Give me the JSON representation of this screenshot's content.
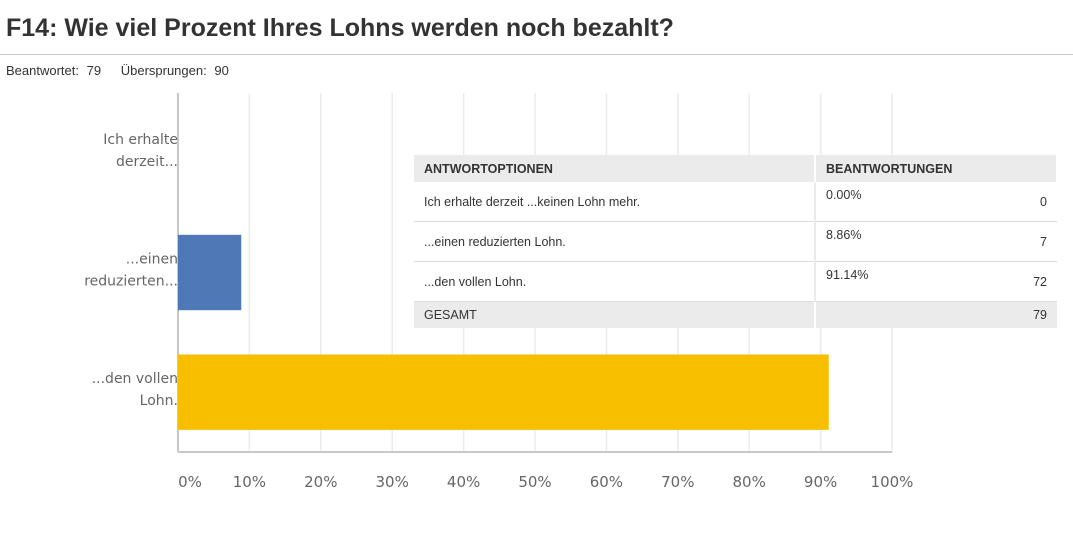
{
  "header": {
    "title": "F14: Wie viel Prozent Ihres Lohns werden noch bezahlt?",
    "answered_label": "Beantwortet:",
    "answered": "79",
    "skipped_label": "Übersprungen:",
    "skipped": "90"
  },
  "chart_data": {
    "type": "bar",
    "orientation": "horizontal",
    "categories": [
      [
        "Ich erhalte",
        "derzeit..."
      ],
      [
        "...einen",
        "reduzierten..."
      ],
      [
        "...den vollen",
        "Lohn."
      ]
    ],
    "values": [
      0,
      8.86,
      91.14
    ],
    "colors": [
      "#4f79b6",
      "#4f79b6",
      "#f7bf00"
    ],
    "xlim": [
      0,
      100
    ],
    "xticks": [
      "0%",
      "10%",
      "20%",
      "30%",
      "40%",
      "50%",
      "60%",
      "70%",
      "80%",
      "90%",
      "100%"
    ],
    "grid": true
  },
  "table": {
    "headers": [
      "ANTWORTOPTIONEN",
      "BEANTWORTUNGEN"
    ],
    "rows": [
      {
        "option": "Ich erhalte derzeit ...keinen Lohn mehr.",
        "percent": "0.00%",
        "count": "0"
      },
      {
        "option": "...einen reduzierten Lohn.",
        "percent": "8.86%",
        "count": "7"
      },
      {
        "option": "...den vollen Lohn.",
        "percent": "91.14%",
        "count": "72"
      }
    ],
    "total_label": "GESAMT",
    "total": "79"
  }
}
